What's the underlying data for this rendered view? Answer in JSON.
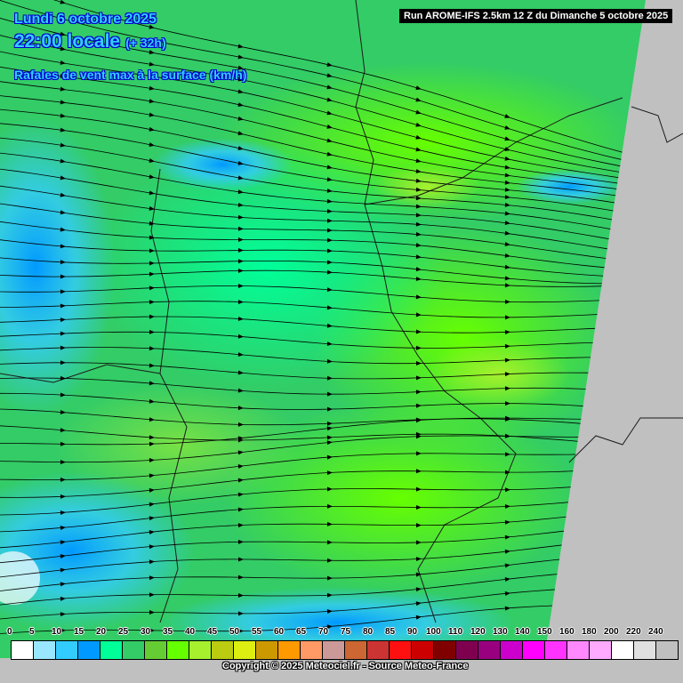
{
  "header": {
    "date": "Lundi 6 octobre 2025",
    "time": "22:00 locale",
    "lead": "(+ 32h)",
    "parameter": "Rafales de vent max à la surface (km/h)",
    "run": "Run AROME-IFS 2.5km 12 Z du Dimanche 5 octobre 2025"
  },
  "legend": {
    "unit": "km/h",
    "labels": [
      "0",
      "5",
      "10",
      "15",
      "20",
      "25",
      "30",
      "35",
      "40",
      "45",
      "50",
      "55",
      "60",
      "65",
      "70",
      "75",
      "80",
      "85",
      "90",
      "100",
      "110",
      "120",
      "130",
      "140",
      "150",
      "160",
      "180",
      "200",
      "220",
      "240"
    ],
    "colors": [
      "#ffffff",
      "#99e6ff",
      "#33ccff",
      "#0099ff",
      "#00ff99",
      "#33cc66",
      "#66cc33",
      "#66ff00",
      "#a6f02e",
      "#bbcc11",
      "#ddee11",
      "#cc9900",
      "#ff9900",
      "#ff9966",
      "#cc9999",
      "#cc6633",
      "#cc3333",
      "#ff1010",
      "#cc0000",
      "#800000",
      "#800050",
      "#990080",
      "#cc00cc",
      "#ff00ff",
      "#ff33ff",
      "#ff88ff",
      "#ffaaff",
      "#ffffff",
      "#e0e0e0",
      "#c0c0c0"
    ]
  },
  "footer": {
    "copyright": "Copyright © 2025 Meteociel.fr - Source Meteo-France"
  },
  "map": {
    "no_data_color": "#c0c0c0",
    "streamline_color": "#000000",
    "border_color": "#1a1a1a"
  }
}
